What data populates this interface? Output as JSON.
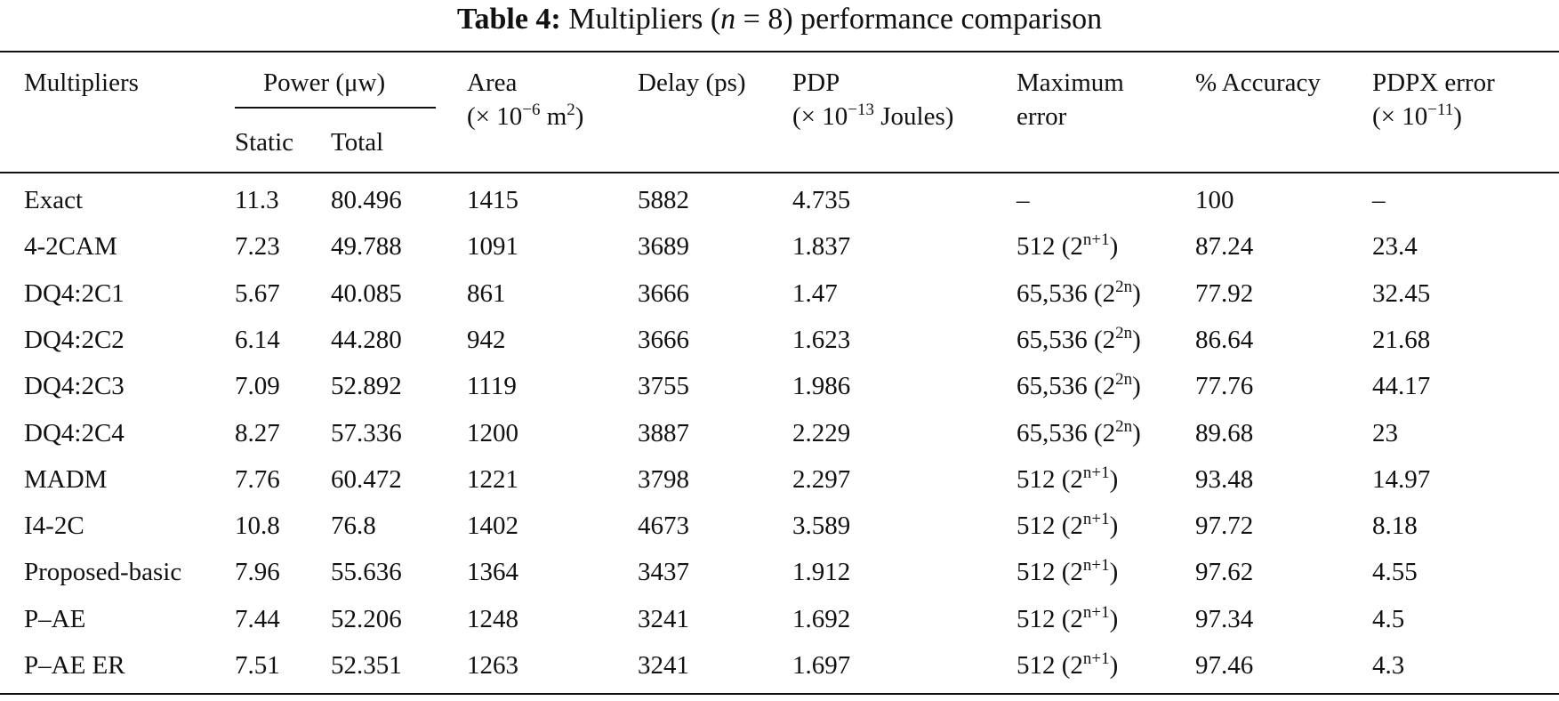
{
  "title": [
    {
      "text": "Table 4:",
      "style": "bold"
    },
    {
      "text": "  Multipliers ("
    },
    {
      "text": "n",
      "style": "italic"
    },
    {
      "text": " = 8) performance comparison"
    }
  ],
  "header": {
    "multipliers": [
      [
        {
          "text": "Multipliers"
        }
      ]
    ],
    "power": [
      [
        {
          "text": "Power (μw)"
        }
      ]
    ],
    "static": [
      [
        {
          "text": "Static"
        }
      ]
    ],
    "total": [
      [
        {
          "text": "Total"
        }
      ]
    ],
    "area": [
      [
        {
          "text": "Area"
        }
      ],
      [
        {
          "text": "(× 10"
        },
        {
          "text": "−6",
          "style": "sup"
        },
        {
          "text": " m"
        },
        {
          "text": "2",
          "style": "sup"
        },
        {
          "text": ")"
        }
      ]
    ],
    "delay": [
      [
        {
          "text": "Delay (ps)"
        }
      ]
    ],
    "pdp": [
      [
        {
          "text": "PDP"
        }
      ],
      [
        {
          "text": "(× 10"
        },
        {
          "text": "−13",
          "style": "sup"
        },
        {
          "text": " Joules)"
        }
      ]
    ],
    "max_error": [
      [
        {
          "text": "Maximum"
        }
      ],
      [
        {
          "text": "error"
        }
      ]
    ],
    "accuracy": [
      [
        {
          "text": "% Accuracy"
        }
      ]
    ],
    "pdpx_error": [
      [
        {
          "text": "PDPX error"
        }
      ],
      [
        {
          "text": "(× 10"
        },
        {
          "text": "−11",
          "style": "sup"
        },
        {
          "text": ")"
        }
      ]
    ]
  },
  "rows": [
    [
      "Exact",
      "11.3",
      "80.496",
      "1415",
      "5882",
      "4.735",
      [
        {
          "text": "–"
        }
      ],
      "100",
      "–"
    ],
    [
      "4-2CAM",
      "7.23",
      "49.788",
      "1091",
      "3689",
      "1.837",
      [
        {
          "text": "512 (2"
        },
        {
          "text": "n+1",
          "style": "sup"
        },
        {
          "text": ")"
        }
      ],
      "87.24",
      "23.4"
    ],
    [
      "DQ4:2C1",
      "5.67",
      "40.085",
      "861",
      "3666",
      "1.47",
      [
        {
          "text": "65,536 (2"
        },
        {
          "text": "2n",
          "style": "sup"
        },
        {
          "text": ")"
        }
      ],
      "77.92",
      "32.45"
    ],
    [
      "DQ4:2C2",
      "6.14",
      "44.280",
      "942",
      "3666",
      "1.623",
      [
        {
          "text": "65,536 (2"
        },
        {
          "text": "2n",
          "style": "sup"
        },
        {
          "text": ")"
        }
      ],
      "86.64",
      "21.68"
    ],
    [
      "DQ4:2C3",
      "7.09",
      "52.892",
      "1119",
      "3755",
      "1.986",
      [
        {
          "text": "65,536 (2"
        },
        {
          "text": "2n",
          "style": "sup"
        },
        {
          "text": ")"
        }
      ],
      "77.76",
      "44.17"
    ],
    [
      "DQ4:2C4",
      "8.27",
      "57.336",
      "1200",
      "3887",
      "2.229",
      [
        {
          "text": "65,536 (2"
        },
        {
          "text": "2n",
          "style": "sup"
        },
        {
          "text": ")"
        }
      ],
      "89.68",
      "23"
    ],
    [
      "MADM",
      "7.76",
      "60.472",
      "1221",
      "3798",
      "2.297",
      [
        {
          "text": "512 (2"
        },
        {
          "text": "n+1",
          "style": "sup"
        },
        {
          "text": ")"
        }
      ],
      "93.48",
      "14.97"
    ],
    [
      "I4-2C",
      "10.8",
      "76.8",
      "1402",
      "4673",
      "3.589",
      [
        {
          "text": "512 (2"
        },
        {
          "text": "n+1",
          "style": "sup"
        },
        {
          "text": ")"
        }
      ],
      "97.72",
      "8.18"
    ],
    [
      "Proposed-basic",
      "7.96",
      "55.636",
      "1364",
      "3437",
      "1.912",
      [
        {
          "text": "512 (2"
        },
        {
          "text": "n+1",
          "style": "sup"
        },
        {
          "text": ")"
        }
      ],
      "97.62",
      "4.55"
    ],
    [
      "P–AE",
      "7.44",
      "52.206",
      "1248",
      "3241",
      "1.692",
      [
        {
          "text": "512 (2"
        },
        {
          "text": "n+1",
          "style": "sup"
        },
        {
          "text": ")"
        }
      ],
      "97.34",
      "4.5"
    ],
    [
      "P–AE ER",
      "7.51",
      "52.351",
      "1263",
      "3241",
      "1.697",
      [
        {
          "text": "512 (2"
        },
        {
          "text": "n+1",
          "style": "sup"
        },
        {
          "text": ")"
        }
      ],
      "97.46",
      "4.3"
    ]
  ]
}
